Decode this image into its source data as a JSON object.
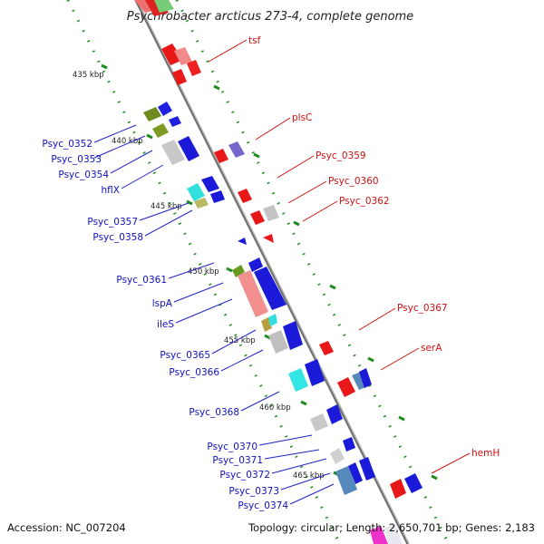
{
  "title": "Psychrobacter arcticus 273-4, complete genome",
  "footer": {
    "accession": "Accession: NC_007204",
    "summary": "Topology: circular; Length: 2,650,701 bp; Genes: 2,183"
  },
  "ticks": [
    {
      "label": "435 kbp",
      "kbp": 435
    },
    {
      "label": "440 kbp",
      "kbp": 440
    },
    {
      "label": "445 kbp",
      "kbp": 445
    },
    {
      "label": "450 kbp",
      "kbp": 450
    },
    {
      "label": "455 kbp",
      "kbp": 455
    },
    {
      "label": "460 kbp",
      "kbp": 460
    },
    {
      "label": "465 kbp",
      "kbp": 465
    }
  ],
  "genes_left": [
    {
      "label": "Psyc_0352"
    },
    {
      "label": "Psyc_0353"
    },
    {
      "label": "Psyc_0354"
    },
    {
      "label": "hflX"
    },
    {
      "label": "Psyc_0357"
    },
    {
      "label": "Psyc_0358"
    },
    {
      "label": "Psyc_0361"
    },
    {
      "label": "lspA"
    },
    {
      "label": "ileS"
    },
    {
      "label": "Psyc_0365"
    },
    {
      "label": "Psyc_0366"
    },
    {
      "label": "Psyc_0368"
    },
    {
      "label": "Psyc_0370"
    },
    {
      "label": "Psyc_0371"
    },
    {
      "label": "Psyc_0372"
    },
    {
      "label": "Psyc_0373"
    },
    {
      "label": "Psyc_0374"
    }
  ],
  "genes_right": [
    {
      "label": "tsf"
    },
    {
      "label": "plsC"
    },
    {
      "label": "Psyc_0359"
    },
    {
      "label": "Psyc_0360"
    },
    {
      "label": "Psyc_0362"
    },
    {
      "label": "Psyc_0367"
    },
    {
      "label": "serA"
    },
    {
      "label": "hemH"
    }
  ],
  "colors": {
    "backbone": "#8a8a8a",
    "tick_dots": "#2a8a2a",
    "label_left": "#1010c0",
    "label_right": "#d01010",
    "gene_red": "#ee1111",
    "gene_blue": "#1111dd",
    "gene_pink": "#f09090",
    "gene_gray": "#c4c4c4",
    "gene_cyan": "#33e0e0",
    "gene_olive": "#7a8a22",
    "gene_purple": "#7766cc",
    "gene_steel": "#5588bb"
  }
}
